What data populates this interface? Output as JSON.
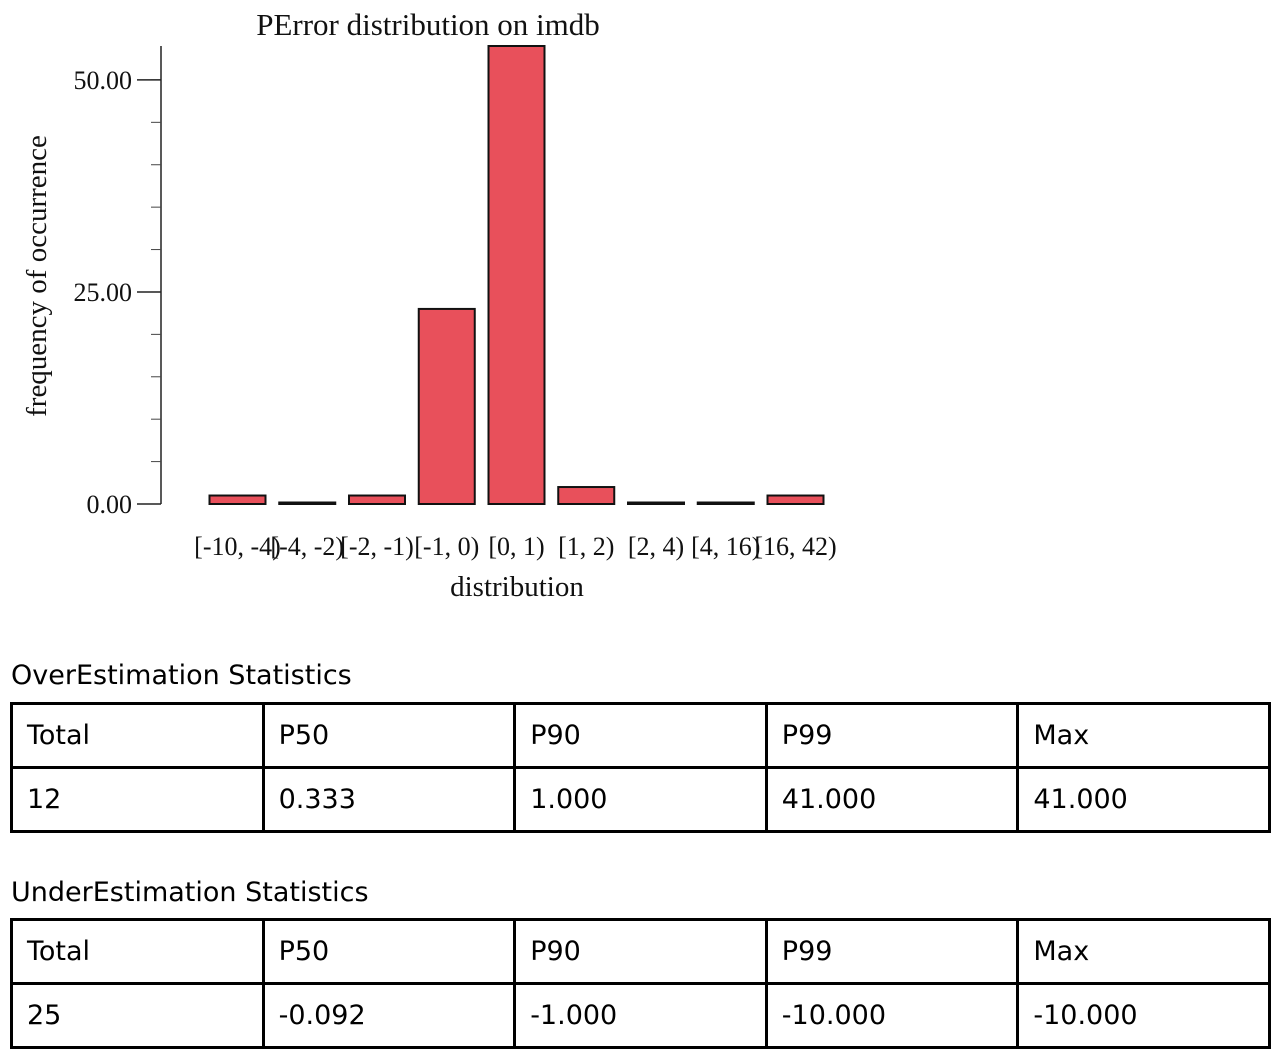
{
  "chart_data": {
    "type": "bar",
    "title": "PError distribution on imdb",
    "xlabel": "distribution",
    "ylabel": "frequency of occurrence",
    "categories": [
      "[-10, -4)",
      "[-4, -2)",
      "[-2, -1)",
      "[-1, 0)",
      "[0, 1)",
      "[1, 2)",
      "[2, 4)",
      "[4, 16)",
      "[16, 42)"
    ],
    "values": [
      1,
      0,
      1,
      23,
      54,
      2,
      0,
      0,
      1
    ],
    "ylim": [
      0,
      54
    ],
    "yticks": [
      "0.00",
      "25.00",
      "50.00"
    ],
    "ytick_values": [
      0,
      25,
      50
    ],
    "minor_tick_step": 5,
    "bar_color": "#e8505b",
    "grid": false
  },
  "over": {
    "title": "OverEstimation Statistics",
    "headers": [
      "Total",
      "P50",
      "P90",
      "P99",
      "Max"
    ],
    "values": [
      "12",
      "0.333",
      "1.000",
      "41.000",
      "41.000"
    ]
  },
  "under": {
    "title": "UnderEstimation Statistics",
    "headers": [
      "Total",
      "P50",
      "P90",
      "P99",
      "Max"
    ],
    "values": [
      "25",
      "-0.092",
      "-1.000",
      "-10.000",
      "-10.000"
    ]
  }
}
